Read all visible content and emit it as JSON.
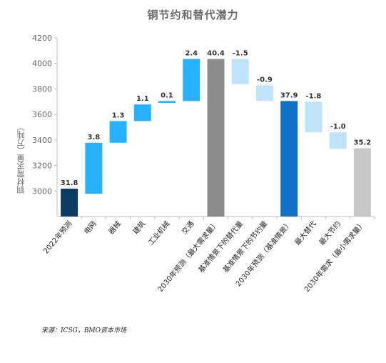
{
  "chart_data": {
    "type": "bar",
    "subtype": "waterfall",
    "title": "铜节约和替代潜力",
    "ylabel": "铜材需求量（万吨）",
    "xlabel": "",
    "ylim": [
      2800,
      4200
    ],
    "yticks": [
      3000,
      3200,
      3400,
      3600,
      3800,
      4000,
      4200
    ],
    "grid": false,
    "categories": [
      "2022年预测",
      "电网",
      "器械",
      "建筑",
      "工业机械",
      "交通",
      "2030年预测（最大需求量）",
      "基准情景下的替代量",
      "基准情景下的节约量",
      "2030年预测（基准情景）",
      "最大替代",
      "最大节约",
      "2030年需求（最小需求量）"
    ],
    "labels": [
      "31.8",
      "3.8",
      "1.3",
      "1.1",
      "0.1",
      "2.4",
      "40.4",
      "-1.5",
      "-0.9",
      "37.9",
      "-1.8",
      "-1.0",
      "35.2"
    ],
    "bars": [
      {
        "start": 2800,
        "end": 3018,
        "color": "#0b3a63"
      },
      {
        "start": 2978,
        "end": 3378,
        "color": "#27b1ff"
      },
      {
        "start": 3378,
        "end": 3548,
        "color": "#27b1ff"
      },
      {
        "start": 3548,
        "end": 3678,
        "color": "#27b1ff"
      },
      {
        "start": 3690,
        "end": 3705,
        "color": "#27b1ff"
      },
      {
        "start": 3705,
        "end": 4035,
        "color": "#27b1ff"
      },
      {
        "start": 2800,
        "end": 4035,
        "color": "#8c8c8c"
      },
      {
        "start": 3838,
        "end": 4035,
        "color": "#bfe4fa"
      },
      {
        "start": 3705,
        "end": 3828,
        "color": "#bfe4fa"
      },
      {
        "start": 2800,
        "end": 3705,
        "color": "#0f72c8"
      },
      {
        "start": 3460,
        "end": 3700,
        "color": "#bfe4fa"
      },
      {
        "start": 3330,
        "end": 3460,
        "color": "#bfe4fa"
      },
      {
        "start": 2800,
        "end": 3335,
        "color": "#c8c8c8"
      }
    ]
  },
  "source": "来源：ICSG，BMO资本市场"
}
